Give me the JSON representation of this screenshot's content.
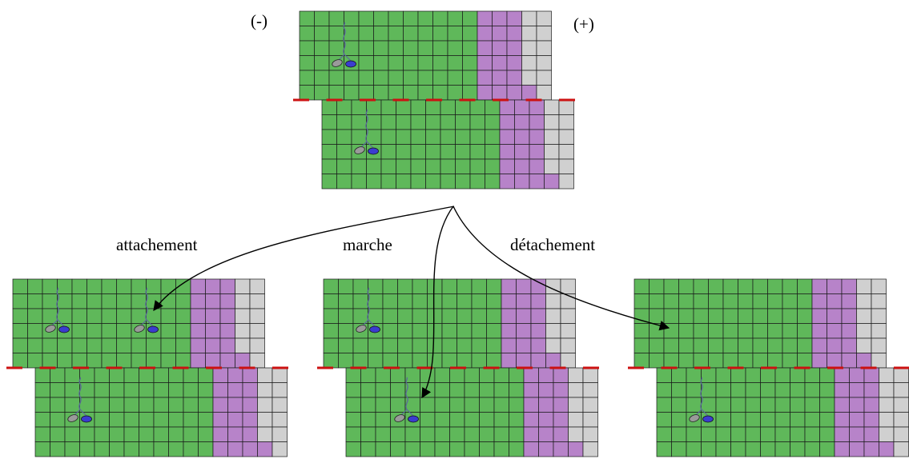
{
  "labels": {
    "minus_end": "(-)",
    "plus_end": "(+)",
    "attach": "attachement",
    "walk": "marche",
    "detach": "détachement"
  },
  "colors": {
    "green": "#5fb85a",
    "purple": "#b783c9",
    "gray": "#d0d0d0",
    "grid_line": "#1a1a1a",
    "dash": "#cc1111",
    "motor_head_gray": "#9a9a9a",
    "motor_head_blue": "#3b3ccf",
    "stalk": "#5a6a9a",
    "arrow": "#000000"
  },
  "panels": [
    {
      "id": "top",
      "motors": [
        {
          "top": 1,
          "bottom": 1
        }
      ]
    },
    {
      "id": "attachement",
      "motors": [
        {
          "top": 2,
          "bottom": 1
        }
      ]
    },
    {
      "id": "marche",
      "motors": [
        {
          "top": 1,
          "bottom": 1
        }
      ]
    },
    {
      "id": "detachement",
      "motors": [
        {
          "top": 0,
          "bottom": 1
        }
      ]
    }
  ]
}
